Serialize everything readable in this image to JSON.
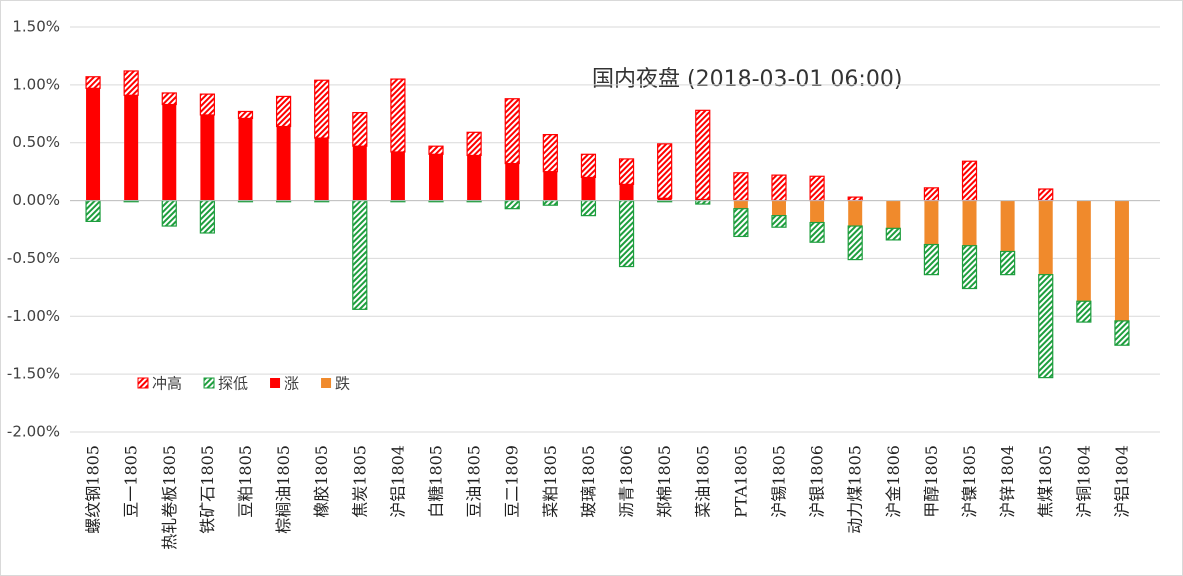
{
  "chart_data": {
    "type": "bar",
    "stacked": true,
    "title": "国内夜盘 (2018-03-01 06:00)",
    "categories": [
      "螺纹钢1805",
      "豆一1805",
      "热轧卷板1805",
      "铁矿石1805",
      "豆粕1805",
      "棕榈油1805",
      "橡胶1805",
      "焦炭1805",
      "沪铝1804",
      "白糖1805",
      "豆油1805",
      "豆二1809",
      "菜粕1805",
      "玻璃1805",
      "沥青1806",
      "郑棉1805",
      "菜油1805",
      "PTA1805",
      "沪锡1805",
      "沪银1806",
      "动力煤1805",
      "沪金1806",
      "甲醇1805",
      "沪镍1805",
      "沪锌1804",
      "焦煤1805",
      "沪铜1804",
      "沪铝1804"
    ],
    "series": [
      {
        "name": "涨",
        "color": "#ff0000",
        "hatch": false,
        "values": [
          0.97,
          0.91,
          0.83,
          0.74,
          0.71,
          0.64,
          0.54,
          0.47,
          0.42,
          0.4,
          0.39,
          0.32,
          0.25,
          0.2,
          0.14,
          0.02,
          0.01,
          0,
          0,
          0,
          0,
          0,
          0,
          0,
          0,
          0,
          0,
          0
        ]
      },
      {
        "name": "冲高",
        "color": "#ff0000",
        "hatch": true,
        "values": [
          0.1,
          0.21,
          0.1,
          0.18,
          0.06,
          0.26,
          0.5,
          0.29,
          0.63,
          0.07,
          0.2,
          0.56,
          0.32,
          0.2,
          0.22,
          0.47,
          0.77,
          0.24,
          0.22,
          0.21,
          0.03,
          0,
          0.11,
          0.34,
          0,
          0.1,
          0,
          0
        ]
      },
      {
        "name": "跌",
        "color": "#f08a2c",
        "hatch": false,
        "values": [
          0,
          0,
          0,
          0,
          0,
          0,
          0,
          0,
          0,
          0,
          0,
          0,
          0,
          0,
          0,
          0,
          0,
          -0.07,
          -0.13,
          -0.19,
          -0.22,
          -0.24,
          -0.38,
          -0.39,
          -0.44,
          -0.64,
          -0.87,
          -1.04
        ]
      },
      {
        "name": "探低",
        "color": "#1e9e3e",
        "hatch": true,
        "values": [
          -0.18,
          -0.01,
          -0.22,
          -0.28,
          -0.01,
          -0.01,
          -0.01,
          -0.94,
          -0.01,
          -0.01,
          -0.01,
          -0.07,
          -0.04,
          -0.13,
          -0.57,
          -0.01,
          -0.03,
          -0.24,
          -0.1,
          -0.17,
          -0.29,
          -0.1,
          -0.26,
          -0.37,
          -0.2,
          -0.89,
          -0.18,
          -0.21
        ]
      }
    ],
    "legend_order": [
      1,
      3,
      0,
      2
    ],
    "ylim": [
      -2,
      1.5
    ],
    "yticks": [
      {
        "value": -2,
        "label": "-2.00%"
      },
      {
        "value": -1.5,
        "label": "-1.50%"
      },
      {
        "value": -1,
        "label": "-1.00%"
      },
      {
        "value": -0.5,
        "label": "-0.50%"
      },
      {
        "value": 0,
        "label": "0.00%"
      },
      {
        "value": 0.5,
        "label": "0.50%"
      },
      {
        "value": 1,
        "label": "1.00%"
      },
      {
        "value": 1.5,
        "label": "1.50%"
      }
    ],
    "grid": true
  }
}
